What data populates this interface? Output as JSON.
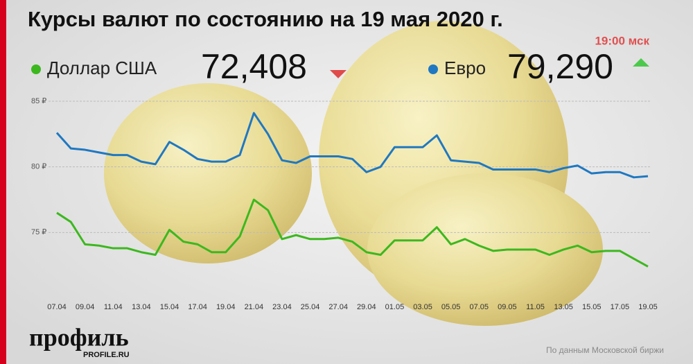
{
  "chart_data": {
    "type": "line",
    "title": "Курсы валют по состоянию на 19 мая 2020 г.",
    "subtitle": "19:00 мск",
    "source": "По данным Московской биржи",
    "brand": {
      "name": "профиль",
      "site": "PROFILE.RU"
    },
    "categories": [
      "07.04",
      null,
      "09.04",
      null,
      "11.04",
      null,
      "13.04",
      null,
      "15.04",
      null,
      "17.04",
      null,
      "19.04",
      null,
      "21.04",
      null,
      "23.04",
      null,
      "25.04",
      null,
      "27.04",
      null,
      "29.04",
      null,
      "01.05",
      null,
      "03.05",
      null,
      "05.05",
      null,
      "07.05",
      null,
      "09.05",
      null,
      "11.05",
      null,
      "13.05",
      null,
      "15.05",
      null,
      "17.05",
      null,
      "19.05"
    ],
    "series": [
      {
        "name": "Доллар США",
        "color": "#3cb81e",
        "latest_label": "72,408",
        "trend": "down",
        "values": [
          76.5,
          75.8,
          74.1,
          74.0,
          73.8,
          73.8,
          73.5,
          73.3,
          75.2,
          74.3,
          74.1,
          73.5,
          73.5,
          74.7,
          77.5,
          76.7,
          74.5,
          74.8,
          74.5,
          74.5,
          74.6,
          74.3,
          73.5,
          73.3,
          74.4,
          74.4,
          74.4,
          75.4,
          74.1,
          74.5,
          74.0,
          73.6,
          73.7,
          73.7,
          73.7,
          73.3,
          73.7,
          74.0,
          73.5,
          73.6,
          73.6,
          73.0,
          72.408
        ]
      },
      {
        "name": "Евро",
        "color": "#1f78c1",
        "latest_label": "79,290",
        "trend": "up",
        "values": [
          82.6,
          81.4,
          81.3,
          81.1,
          80.9,
          80.9,
          80.4,
          80.2,
          81.9,
          81.3,
          80.6,
          80.4,
          80.4,
          80.9,
          84.1,
          82.5,
          80.5,
          80.3,
          80.8,
          80.8,
          80.8,
          80.6,
          79.6,
          80.0,
          81.5,
          81.5,
          81.5,
          82.4,
          80.5,
          80.4,
          80.3,
          79.8,
          79.8,
          79.8,
          79.8,
          79.6,
          79.9,
          80.1,
          79.5,
          79.6,
          79.6,
          79.2,
          79.29
        ]
      }
    ],
    "ylim": [
      70,
      85
    ],
    "yticks": [
      {
        "value": 75,
        "label": "75 ₽"
      },
      {
        "value": 80,
        "label": "80 ₽"
      },
      {
        "value": 85,
        "label": "85 ₽"
      }
    ],
    "grid": true
  }
}
